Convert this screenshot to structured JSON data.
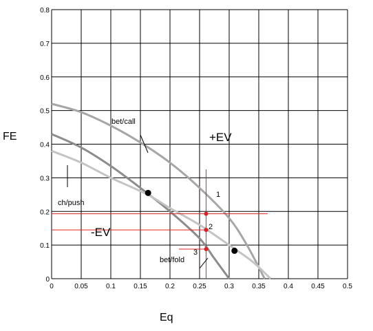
{
  "chart_data": {
    "type": "line",
    "xlabel": "Eq",
    "ylabel": "FE",
    "xlim": [
      0,
      0.5
    ],
    "ylim": [
      0,
      0.8
    ],
    "grid": true,
    "x_ticks": [
      "0",
      "0.05",
      "0.1",
      "0.15",
      "0.2",
      "0.25",
      "0.3",
      "0.35",
      "0.4",
      "0.45",
      "0.5"
    ],
    "y_ticks": [
      "0",
      "0.1",
      "0.2",
      "0.3",
      "0.4",
      "0.5",
      "0.6",
      "0.7",
      "0.8"
    ],
    "series": [
      {
        "color": "#a6a6a6",
        "points": [
          [
            0,
            0.52
          ],
          [
            0.05,
            0.495
          ],
          [
            0.1,
            0.455
          ],
          [
            0.15,
            0.405
          ],
          [
            0.2,
            0.345
          ],
          [
            0.25,
            0.27
          ],
          [
            0.3,
            0.18
          ],
          [
            0.33,
            0.1
          ],
          [
            0.36,
            0.0
          ]
        ]
      },
      {
        "color": "#8c8c8c",
        "points": [
          [
            0,
            0.43
          ],
          [
            0.05,
            0.39
          ],
          [
            0.1,
            0.335
          ],
          [
            0.15,
            0.27
          ],
          [
            0.2,
            0.2
          ],
          [
            0.25,
            0.12
          ],
          [
            0.275,
            0.06
          ],
          [
            0.3,
            0.0
          ]
        ]
      },
      {
        "color": "#c4c4c4",
        "points": [
          [
            0,
            0.38
          ],
          [
            0.05,
            0.345
          ],
          [
            0.1,
            0.3
          ],
          [
            0.16,
            0.252
          ],
          [
            0.2,
            0.21
          ],
          [
            0.25,
            0.16
          ],
          [
            0.3,
            0.1
          ],
          [
            0.34,
            0.05
          ],
          [
            0.37,
            0.0
          ]
        ]
      }
    ],
    "markers": [
      {
        "x": 0.163,
        "y": 0.255,
        "color": "#000000"
      },
      {
        "x": 0.309,
        "y": 0.083,
        "color": "#000000"
      },
      {
        "x": 0.261,
        "y": 0.193,
        "color": "#e02020"
      },
      {
        "x": 0.261,
        "y": 0.145,
        "color": "#e02020"
      },
      {
        "x": 0.261,
        "y": 0.088,
        "color": "#e02020"
      }
    ],
    "reference_lines": [
      {
        "orientation": "vertical",
        "x": 0.261,
        "from": 0,
        "to": 0.325,
        "color": "#e02020"
      },
      {
        "orientation": "horizontal",
        "y": 0.193,
        "from": 0,
        "to": 0.365,
        "color": "#e02020"
      },
      {
        "orientation": "horizontal",
        "y": 0.145,
        "from": 0,
        "to": 0.265,
        "color": "#e02020"
      },
      {
        "orientation": "horizontal",
        "y": 0.088,
        "from": 0.215,
        "to": 0.265,
        "color": "#e02020"
      }
    ],
    "annotations": {
      "plus_ev": "+EV",
      "minus_ev": "-EV",
      "bet_call": "bet/call",
      "bet_fold": "bet/fold",
      "ch_push": "ch/push",
      "p1": "1",
      "p2": "2",
      "p3": "3"
    }
  }
}
